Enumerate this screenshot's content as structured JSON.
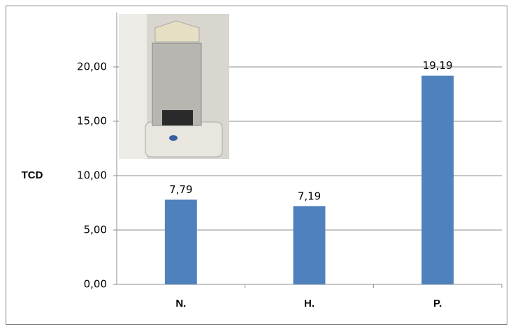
{
  "chart_data": {
    "type": "bar",
    "y_label": "TCD",
    "categories": [
      "N.",
      "H.",
      "P."
    ],
    "values": [
      7.79,
      7.19,
      19.19
    ],
    "value_labels": [
      "7,79",
      "7,19",
      "19,19"
    ],
    "color": "#4f81bd",
    "ylim": [
      0,
      25
    ],
    "yticks": [
      {
        "value": 0,
        "label": "0,00"
      },
      {
        "value": 5,
        "label": "5,00"
      },
      {
        "value": 10,
        "label": "10,00"
      },
      {
        "value": 15,
        "label": "15,00"
      },
      {
        "value": 20,
        "label": "20,00"
      }
    ],
    "grid": true
  }
}
